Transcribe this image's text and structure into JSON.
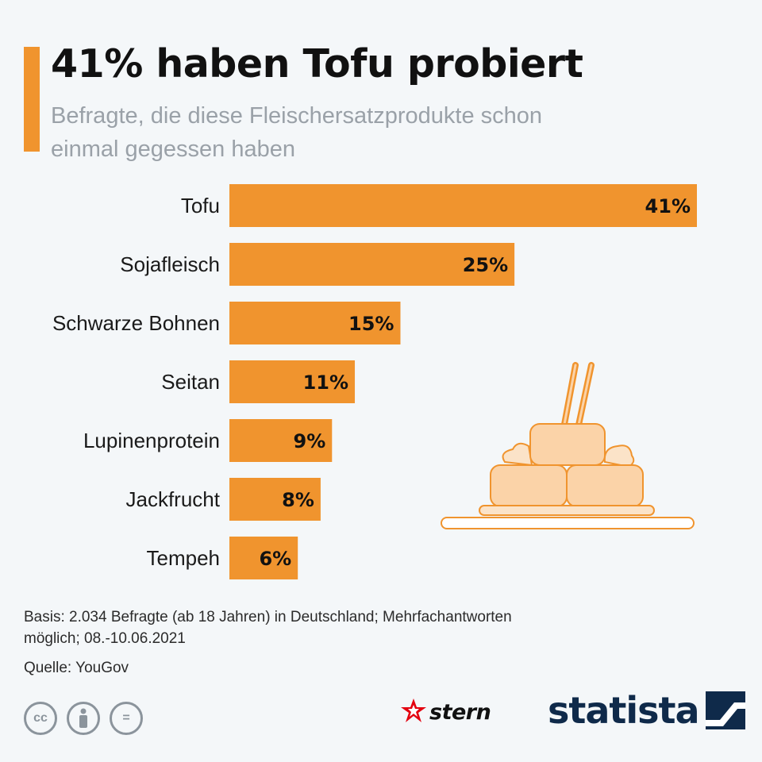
{
  "colors": {
    "accent": "#f0942e",
    "accent_light": "#fbd3a8",
    "title": "#111111",
    "subtitle": "#9aa1a8",
    "brand_dark": "#0f2a4a"
  },
  "header": {
    "title": "41% haben Tofu probiert",
    "subtitle": "Befragte, die diese Fleischersatzprodukte schon einmal gegessen haben"
  },
  "chart_data": {
    "type": "bar",
    "orientation": "horizontal",
    "title": "41% haben Tofu probiert",
    "subtitle": "Befragte, die diese Fleischersatzprodukte schon einmal gegessen haben",
    "categories": [
      "Tofu",
      "Sojafleisch",
      "Schwarze Bohnen",
      "Seitan",
      "Lupinenprotein",
      "Jackfrucht",
      "Tempeh"
    ],
    "values": [
      41,
      25,
      15,
      11,
      9,
      8,
      6
    ],
    "value_labels": [
      "41%",
      "25%",
      "15%",
      "11%",
      "9%",
      "8%",
      "6%"
    ],
    "unit": "%",
    "xlim": [
      0,
      41
    ],
    "grid": false,
    "legend": "none"
  },
  "footer": {
    "basis": "Basis: 2.034 Befragte (ab 18 Jahren) in Deutschland; Mehrfachantworten möglich; 08.-10.06.2021",
    "source": "Quelle: YouGov",
    "license_icons": [
      "cc-icon",
      "attribution-icon",
      "no-derivatives-icon"
    ],
    "license_text": [
      "cc",
      "",
      "="
    ],
    "stern_brand": "stern",
    "statista_brand": "statista"
  }
}
